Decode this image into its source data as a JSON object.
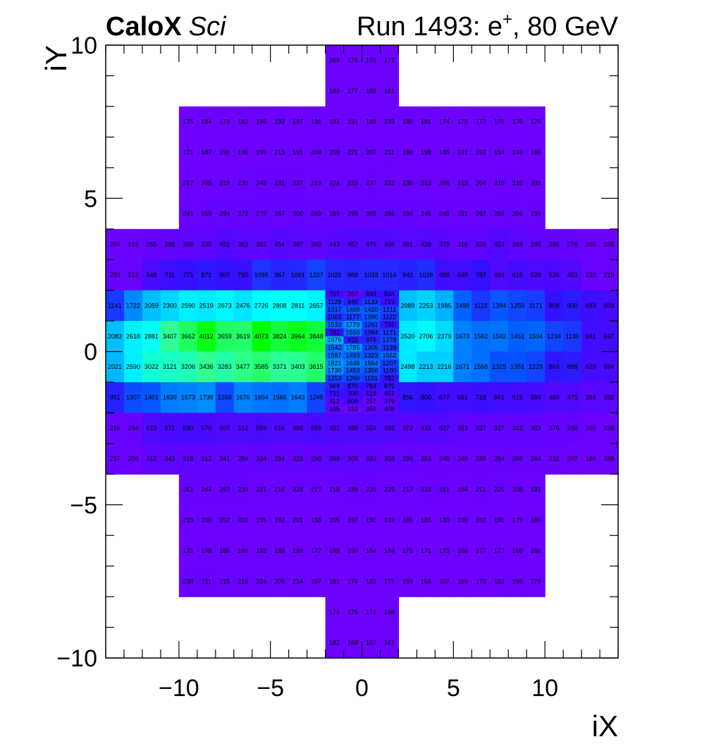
{
  "header": {
    "brand": "CaloX",
    "brand_suffix": "Sci",
    "run_prefix": "Run 1493: e",
    "run_sup": "+",
    "run_suffix": ", 80 GeV"
  },
  "chart_data": {
    "type": "heatmap",
    "title": "",
    "xlabel": "iX",
    "ylabel": "iY",
    "xlim": [
      -14,
      14
    ],
    "ylim": [
      -10,
      10
    ],
    "x_ticks": [
      -10,
      -5,
      0,
      5,
      10
    ],
    "y_ticks": [
      -10,
      -5,
      0,
      5,
      10
    ],
    "x_tick_labels": [
      "−10",
      "−5",
      "0",
      "5",
      "10"
    ],
    "y_tick_labels": [
      "−10",
      "−5",
      "0",
      "5",
      "10"
    ],
    "color_scale": {
      "min": 150,
      "max": 4100,
      "stops": [
        "#7000ff",
        "#3310ff",
        "#0060ff",
        "#00c8ff",
        "#00ffff",
        "#30ff90",
        "#00ff00"
      ]
    },
    "outer_rows": [
      {
        "y0": 9,
        "y1": 10,
        "x0": -2,
        "values": [
          168,
          176,
          178,
          177
        ]
      },
      {
        "y0": 8,
        "y1": 9,
        "x0": -2,
        "values": [
          188,
          177,
          188,
          181
        ]
      },
      {
        "y0": 7,
        "y1": 8,
        "x0": -10,
        "values": [
          175,
          184,
          178,
          182,
          196,
          192,
          197,
          191,
          181,
          191,
          188,
          193,
          180,
          181,
          174,
          175,
          177,
          178,
          178,
          170
        ]
      },
      {
        "y0": 6,
        "y1": 7,
        "x0": -10,
        "values": [
          171,
          187,
          190,
          196,
          195,
          213,
          191,
          204,
          209,
          221,
          207,
          211,
          188,
          198,
          185,
          191,
          193,
          194,
          193,
          166
        ]
      },
      {
        "y0": 5,
        "y1": 6,
        "x0": -10,
        "values": [
          217,
          205,
          219,
          230,
          245,
          231,
          237,
          219,
          224,
          223,
          237,
          222,
          230,
          213,
          208,
          213,
          204,
          210,
          210,
          209
        ]
      },
      {
        "y0": 4,
        "y1": 5,
        "x0": -10,
        "values": [
          241,
          259,
          284,
          272,
          279,
          267,
          300,
          269,
          289,
          299,
          303,
          286,
          280,
          246,
          248,
          231,
          267,
          259,
          256,
          239
        ]
      },
      {
        "y0": 3,
        "y1": 4,
        "x0": -14,
        "values": [
          204,
          213,
          255,
          288,
          356,
          335,
          451,
          383,
          352,
          454,
          387,
          360,
          443,
          457,
          470,
          466,
          381,
          428,
          375,
          316,
          326,
          453,
          359,
          295,
          295,
          276,
          205,
          195
        ]
      },
      {
        "y0": 2,
        "y1": 3,
        "x0": -14,
        "values": [
          233,
          213,
          548,
          711,
          771,
          871,
          807,
          755,
          1095,
          967,
          1001,
          1227,
          1025,
          988,
          1033,
          1014,
          943,
          1038,
          688,
          649,
          787,
          493,
          615,
          528,
          526,
          453,
          233,
          219
        ]
      },
      {
        "y0": 1,
        "y1": 2,
        "x0": -14,
        "values": [
          1141,
          1722,
          2059,
          2300,
          2590,
          2519,
          2673,
          2476,
          2726,
          2808,
          2811,
          2657,
          null,
          null,
          null,
          null,
          2089,
          2253,
          1985,
          1488,
          1122,
          1394,
          1250,
          1171,
          809,
          900,
          693,
          603
        ]
      },
      {
        "y0": 0,
        "y1": 1,
        "x0": -14,
        "values": [
          2083,
          2618,
          2881,
          3407,
          3662,
          4012,
          3659,
          3619,
          4073,
          3824,
          3964,
          3848,
          null,
          null,
          null,
          null,
          2520,
          2706,
          2379,
          1673,
          1562,
          1592,
          1451,
          1504,
          1234,
          1130,
          681,
          637
        ]
      },
      {
        "y0": -1,
        "y1": 0,
        "x0": -14,
        "values": [
          2021,
          2590,
          3022,
          3121,
          3206,
          3436,
          3283,
          3477,
          3585,
          3371,
          3403,
          3615,
          null,
          null,
          null,
          null,
          2498,
          2213,
          2216,
          1671,
          1568,
          1325,
          1351,
          1229,
          869,
          898,
          629,
          594
        ]
      },
      {
        "y0": -2,
        "y1": -1,
        "x0": -14,
        "values": [
          951,
          1307,
          1401,
          1639,
          1673,
          1738,
          1260,
          1676,
          1604,
          1566,
          1643,
          1245,
          null,
          null,
          null,
          null,
          856,
          800,
          677,
          651,
          718,
          661,
          615,
          584,
          460,
          475,
          384,
          392
        ]
      },
      {
        "y0": -3,
        "y1": -2,
        "x0": -14,
        "values": [
          216,
          234,
          513,
          571,
          590,
          570,
          507,
          512,
          559,
          516,
          484,
          555,
          481,
          489,
          504,
          492,
          372,
          415,
          427,
          353,
          327,
          327,
          322,
          303,
          276,
          292,
          200,
          199
        ]
      },
      {
        "y0": -4,
        "y1": -3,
        "x0": -14,
        "values": [
          237,
          200,
          312,
          343,
          318,
          312,
          341,
          284,
          334,
          294,
          323,
          290,
          369,
          308,
          333,
          303,
          296,
          253,
          245,
          249,
          239,
          264,
          260,
          244,
          232,
          207,
          186,
          189
        ]
      },
      {
        "y0": -5,
        "y1": -4,
        "x0": -10,
        "values": [
          261,
          244,
          267,
          239,
          221,
          216,
          228,
          227,
          218,
          239,
          235,
          229,
          217,
          210,
          211,
          194,
          211,
          225,
          208,
          191
        ]
      },
      {
        "y0": -6,
        "y1": -5,
        "x0": -10,
        "values": [
          210,
          200,
          202,
          202,
          195,
          192,
          201,
          195,
          205,
          197,
          190,
          192,
          185,
          185,
          180,
          190,
          192,
          190,
          179,
          180
        ]
      },
      {
        "y0": -7,
        "y1": -6,
        "x0": -10,
        "values": [
          175,
          198,
          186,
          186,
          183,
          188,
          189,
          177,
          189,
          190,
          184,
          184,
          175,
          171,
          173,
          166,
          177,
          177,
          168,
          166
        ]
      },
      {
        "y0": -8,
        "y1": -7,
        "x0": -10,
        "values": [
          238,
          211,
          215,
          216,
          224,
          206,
          214,
          197,
          182,
          176,
          183,
          177,
          169,
          168,
          167,
          169,
          173,
          183,
          196,
          179
        ]
      },
      {
        "y0": -9,
        "y1": -8,
        "x0": -2,
        "values": [
          174,
          175,
          172,
          168
        ]
      },
      {
        "y0": -10,
        "y1": -9,
        "x0": -2,
        "values": [
          182,
          168,
          167,
          167
        ]
      }
    ],
    "fine_region": {
      "x0": -2,
      "x1": 2,
      "y0": -2,
      "y1": 2,
      "rows": [
        [
          707,
          367,
          844,
          834
        ],
        [
          1128,
          940,
          1133,
          719
        ],
        [
          1317,
          1468,
          1410,
          1211
        ],
        [
          1063,
          1177,
          1390,
          1122
        ],
        [
          1533,
          1779,
          1261,
          759
        ],
        [
          782,
          1550,
          1084,
          1171
        ],
        [
          1976,
          922,
          979,
          1278
        ],
        [
          1542,
          1785,
          1305,
          1139
        ],
        [
          1587,
          1493,
          1323,
          1552
        ],
        [
          1821,
          1646,
          1564,
          1207
        ],
        [
          1730,
          1453,
          1356,
          1100
        ],
        [
          1253,
          1260,
          1151,
          782
        ],
        [
          969,
          870,
          784,
          875
        ],
        [
          721,
          700,
          519,
          451
        ],
        [
          412,
          600,
          257,
          379
        ],
        [
          335,
          152,
          350,
          409
        ]
      ]
    }
  }
}
